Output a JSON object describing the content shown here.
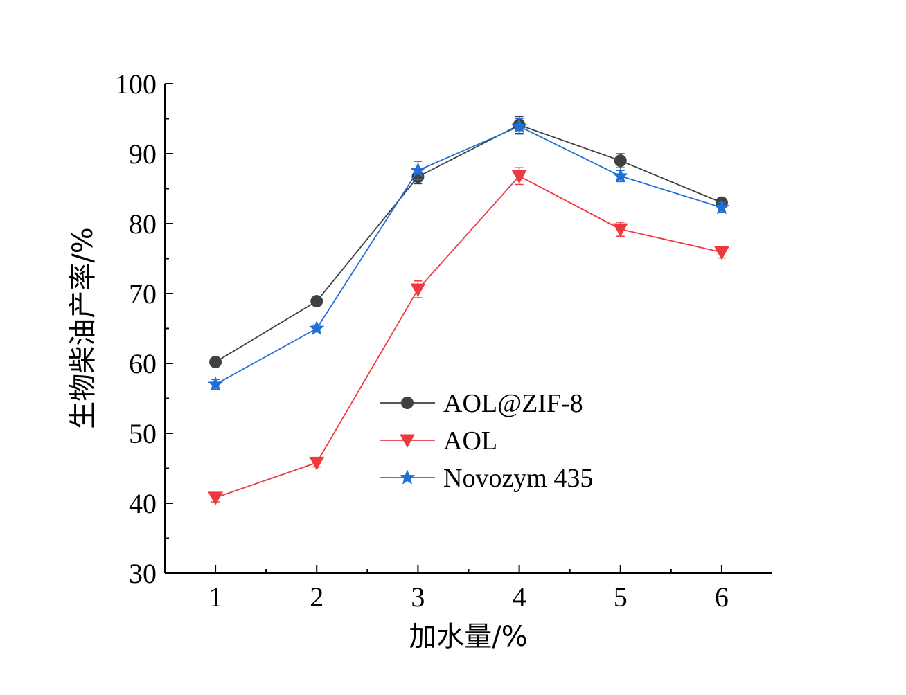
{
  "chart_data": {
    "type": "line",
    "xlabel": "加水量/%",
    "ylabel": "生物柴油产率/%",
    "x": [
      1,
      2,
      3,
      4,
      5,
      6
    ],
    "xlim": [
      0.5,
      6.5
    ],
    "ylim": [
      30,
      100
    ],
    "x_ticks": [
      "1",
      "2",
      "3",
      "4",
      "5",
      "6"
    ],
    "y_ticks": [
      "30",
      "40",
      "50",
      "60",
      "70",
      "80",
      "90",
      "100"
    ],
    "grid": false,
    "legend_position": "center-right",
    "series": [
      {
        "name": "AOL@ZIF-8",
        "marker": "circle",
        "color": "#404040",
        "values": [
          60.2,
          68.9,
          86.7,
          94.1,
          89.0,
          83.0
        ],
        "errors": [
          0.4,
          0.5,
          1.0,
          1.2,
          1.0,
          0.6
        ]
      },
      {
        "name": "AOL",
        "marker": "triangle-down",
        "color": "#f0393f",
        "values": [
          40.8,
          45.8,
          70.6,
          86.8,
          79.2,
          75.9
        ],
        "errors": [
          0.6,
          0.6,
          1.2,
          1.2,
          1.0,
          0.8
        ]
      },
      {
        "name": "Novozym 435",
        "marker": "star",
        "color": "#1f6fd6",
        "values": [
          57.0,
          65.0,
          87.6,
          93.9,
          86.8,
          82.3
        ],
        "errors": [
          0.7,
          0.5,
          1.3,
          1.1,
          0.8,
          0.7
        ]
      }
    ]
  }
}
